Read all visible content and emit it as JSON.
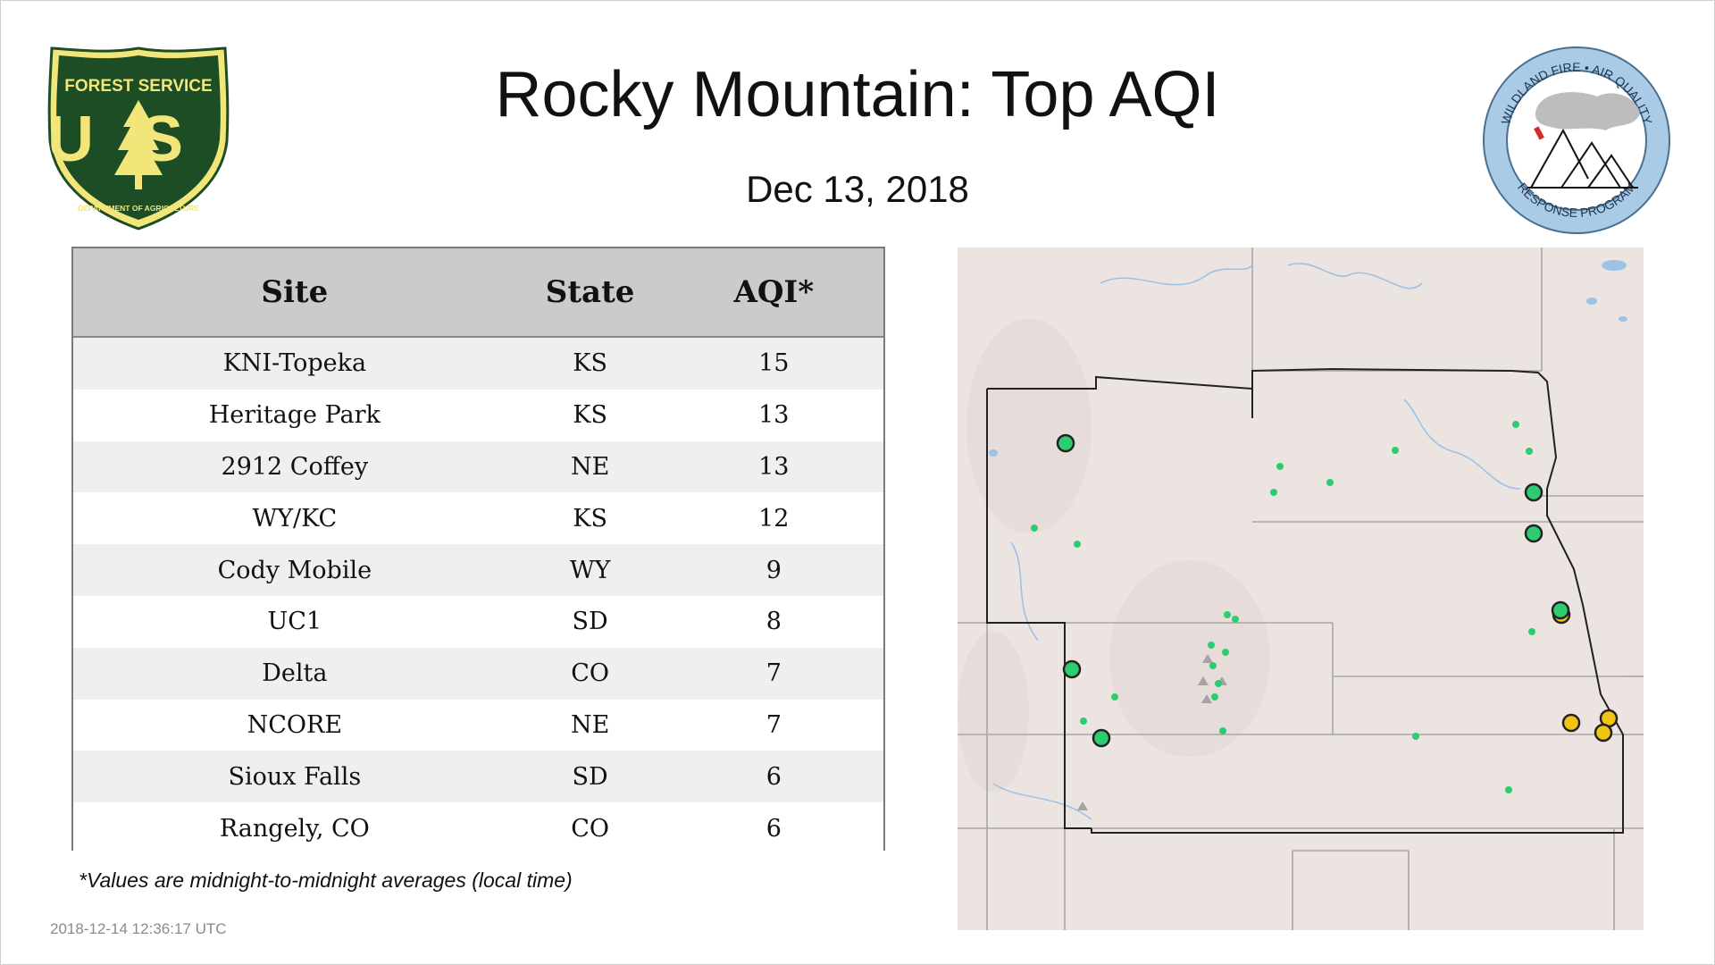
{
  "title": "Rocky Mountain: Top AQI",
  "date": "Dec 13, 2018",
  "logos": {
    "left": {
      "name": "forest-service-shield",
      "text_top": "FOREST SERVICE",
      "text_mid": "US",
      "text_bottom": "DEPARTMENT OF AGRICULTURE",
      "color_fill": "#1d4d25",
      "color_accent": "#f2e57a"
    },
    "right": {
      "name": "wildland-fire-air-quality-response-program",
      "text_top": "WILDLAND FIRE • AIR QUALITY",
      "text_bottom": "RESPONSE PROGRAM",
      "color_ring": "#a9cbe6"
    }
  },
  "table": {
    "headers": {
      "site": "Site",
      "state": "State",
      "aqi": "AQI*"
    },
    "rows": [
      {
        "site": "KNI-Topeka",
        "state": "KS",
        "aqi": "15"
      },
      {
        "site": "Heritage Park",
        "state": "KS",
        "aqi": "13"
      },
      {
        "site": "2912 Coffey",
        "state": "NE",
        "aqi": "13"
      },
      {
        "site": "WY/KC",
        "state": "KS",
        "aqi": "12"
      },
      {
        "site": "Cody Mobile",
        "state": "WY",
        "aqi": "9"
      },
      {
        "site": "UC1",
        "state": "SD",
        "aqi": "8"
      },
      {
        "site": "Delta",
        "state": "CO",
        "aqi": "7"
      },
      {
        "site": "NCORE",
        "state": "NE",
        "aqi": "7"
      },
      {
        "site": "Sioux Falls",
        "state": "SD",
        "aqi": "6"
      },
      {
        "site": "Rangely, CO",
        "state": "CO",
        "aqi": "6"
      }
    ]
  },
  "footnote": "*Values are midnight-to-midnight averages (local time)",
  "timestamp": "2018-12-14 12:36:17 UTC",
  "map": {
    "colors": {
      "background": "#ece4e1",
      "state_lines": "#a7a7a7",
      "region_outline": "#222222",
      "water": "#9cc2e6",
      "aqi_good": "#2ecc71",
      "aqi_moderate": "#f1c40f",
      "inactive": "#a3a3a3"
    }
  }
}
